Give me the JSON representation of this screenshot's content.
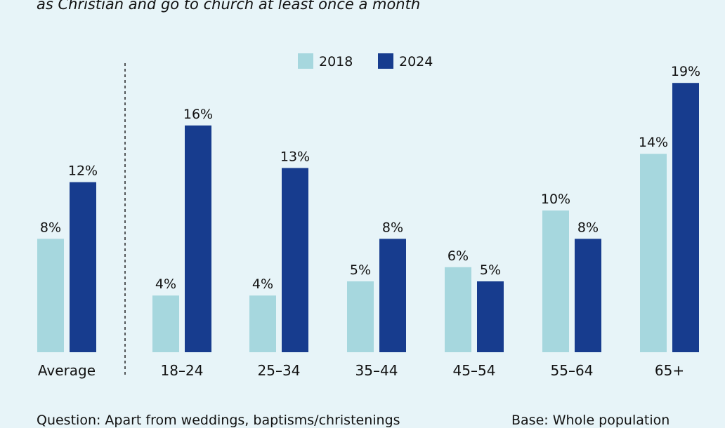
{
  "subtitle": "as Christian and go to church at least once a month",
  "footer": {
    "question": "Question: Apart from weddings, baptisms/christenings",
    "base": "Base: Whole population"
  },
  "chart_data": {
    "type": "bar",
    "categories": [
      "Average",
      "18–24",
      "25–34",
      "35–44",
      "45–54",
      "55–64",
      "65+"
    ],
    "series": [
      {
        "name": "2018",
        "values": [
          8,
          4,
          4,
          5,
          6,
          10,
          14
        ],
        "labels": [
          "8%",
          "4%",
          "4%",
          "5%",
          "6%",
          "10%",
          "14%"
        ],
        "color": "#a6d7de"
      },
      {
        "name": "2024",
        "values": [
          12,
          16,
          13,
          8,
          5,
          8,
          19
        ],
        "labels": [
          "12%",
          "16%",
          "13%",
          "8%",
          "5%",
          "8%",
          "19%"
        ],
        "color": "#173c8e"
      }
    ],
    "ylim": [
      0,
      20
    ],
    "grid": false,
    "legend": "top-center",
    "separator_after_category": "Average"
  }
}
